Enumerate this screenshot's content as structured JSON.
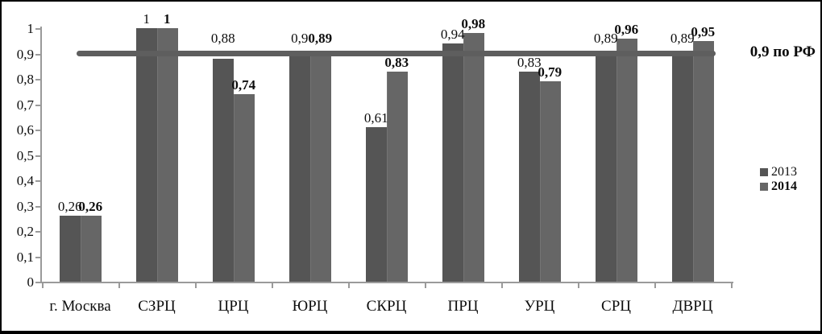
{
  "chart_data": {
    "type": "bar",
    "categories": [
      "г. Москва",
      "СЗРЦ",
      "ЦРЦ",
      "ЮРЦ",
      "СКРЦ",
      "ПРЦ",
      "УРЦ",
      "СРЦ",
      "ДВРЦ"
    ],
    "series": [
      {
        "name": "2013",
        "color": "#555555",
        "bold_labels": false,
        "values": [
          0.26,
          1,
          0.88,
          0.9,
          0.61,
          0.94,
          0.83,
          0.89,
          0.89
        ],
        "labels": [
          "0,26",
          "1",
          "0,88",
          "0,9",
          "0,61",
          "0,94",
          "0,83",
          "0,89",
          "0,89"
        ]
      },
      {
        "name": "2014",
        "color": "#666666",
        "bold_labels": true,
        "values": [
          0.26,
          1,
          0.74,
          0.89,
          0.83,
          0.98,
          0.79,
          0.96,
          0.95
        ],
        "labels": [
          "0,26",
          "1",
          "0,74",
          "0,89",
          "0,83",
          "0,98",
          "0,79",
          "0,96",
          "0,95"
        ]
      }
    ],
    "reference_line": {
      "value": 0.9,
      "label": "0,9 по РФ",
      "color": "#5e5e5e"
    },
    "y_axis": {
      "min": 0,
      "max": 1,
      "step": 0.1,
      "tick_labels": [
        "0",
        "0,1",
        "0,2",
        "0,3",
        "0,4",
        "0,5",
        "0,6",
        "0,7",
        "0,8",
        "0,9",
        "1"
      ]
    },
    "legend": {
      "position": "right",
      "entries": [
        "2013",
        "2014"
      ]
    },
    "grid": "off",
    "title": ""
  }
}
